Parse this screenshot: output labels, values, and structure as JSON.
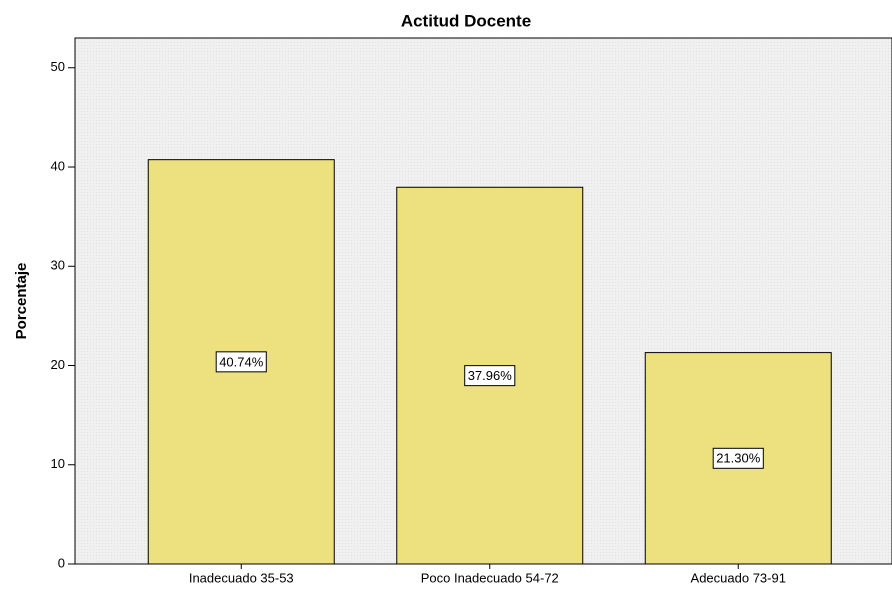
{
  "chart_data": {
    "type": "bar",
    "title": "Actitud Docente",
    "y_label": "Porcentaje",
    "categories": [
      "Inadecuado 35-53",
      "Poco Inadecuado 54-72",
      "Adecuado 73-91"
    ],
    "values": [
      40.74,
      37.96,
      21.3
    ],
    "value_labels": [
      "40.74%",
      "37.96%",
      "21.30%"
    ],
    "color": "#ede07f",
    "ylim": [
      0,
      53
    ],
    "yticks": [
      0,
      10,
      20,
      30,
      40,
      50
    ]
  }
}
